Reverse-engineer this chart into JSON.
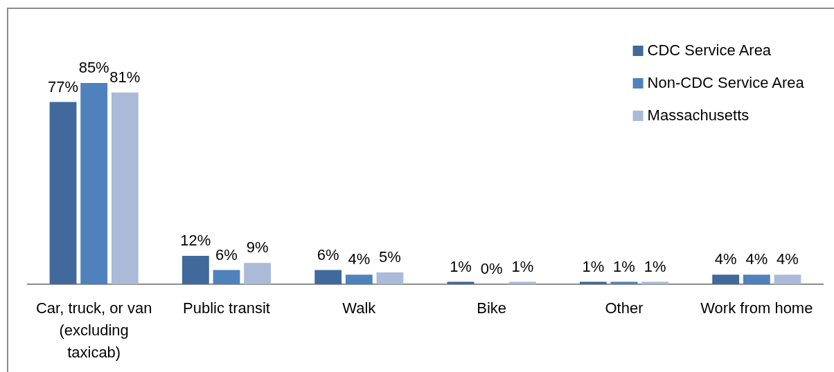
{
  "chart_data": {
    "type": "bar",
    "categories": [
      "Car, truck, or van (excluding taxicab)",
      "Public transit",
      "Walk",
      "Bike",
      "Other",
      "Work from home"
    ],
    "series": [
      {
        "name": "CDC Service Area",
        "color": "#41699b",
        "values": [
          77,
          12,
          6,
          1,
          1,
          4
        ],
        "value_labels": [
          "77%",
          "12%",
          "6%",
          "1%",
          "1%",
          "4%"
        ]
      },
      {
        "name": "Non-CDC Service Area",
        "color": "#4f81bd",
        "values": [
          85,
          6,
          4,
          0,
          1,
          4
        ],
        "value_labels": [
          "85%",
          "6%",
          "4%",
          "0%",
          "1%",
          "4%"
        ]
      },
      {
        "name": "Massachusetts",
        "color": "#aabad8",
        "values": [
          81,
          9,
          5,
          1,
          1,
          4
        ],
        "value_labels": [
          "81%",
          "9%",
          "5%",
          "1%",
          "1%",
          "4%"
        ]
      }
    ],
    "tick_labels": "x",
    "legend": "top right"
  }
}
